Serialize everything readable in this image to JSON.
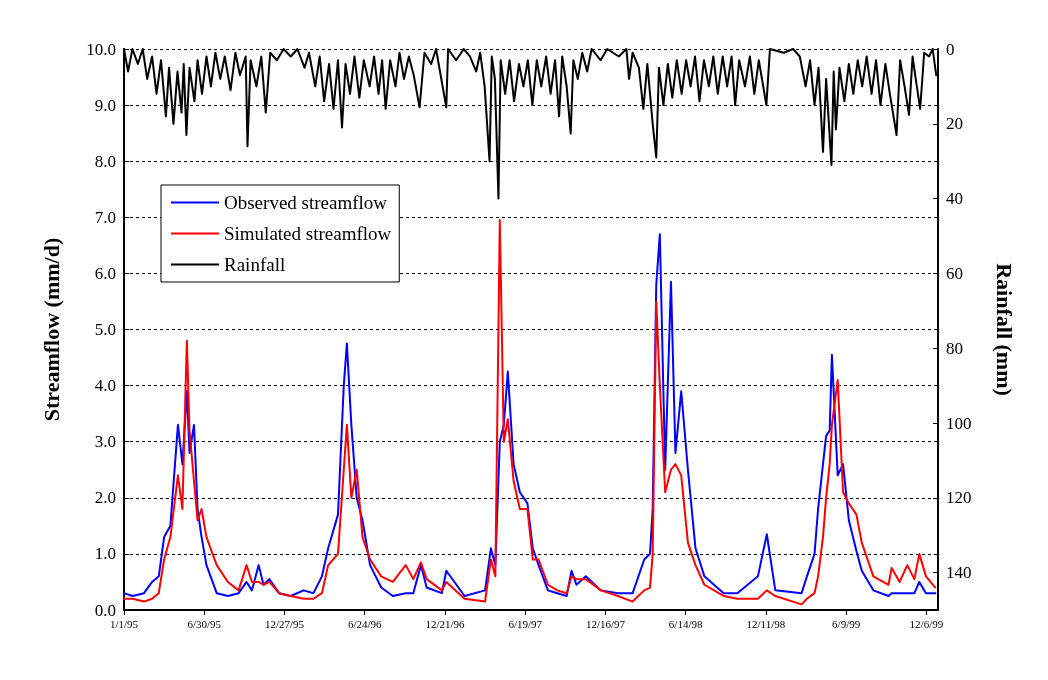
{
  "chart_data": {
    "type": "line",
    "ylabel": "Streamflow (mm/d)",
    "y2label": "Rainfall (mm)",
    "ylim": [
      0,
      10
    ],
    "yticks": [
      {
        "value": 0,
        "label": "0.0"
      },
      {
        "value": 1,
        "label": "1.0"
      },
      {
        "value": 2,
        "label": "2.0"
      },
      {
        "value": 3,
        "label": "3.0"
      },
      {
        "value": 4,
        "label": "4.0"
      },
      {
        "value": 5,
        "label": "5.0"
      },
      {
        "value": 6,
        "label": "6.0"
      },
      {
        "value": 7,
        "label": "7.0"
      },
      {
        "value": 8,
        "label": "8.0"
      },
      {
        "value": 9,
        "label": "9.0"
      },
      {
        "value": 10,
        "label": "10.0"
      }
    ],
    "y2lim": [
      150,
      0
    ],
    "y2ticks": [
      0,
      20,
      40,
      60,
      80,
      100,
      120,
      140
    ],
    "xlim": [
      "1995-01-01",
      "2000-01-01"
    ],
    "xticks": [
      {
        "value": "1995-01-01",
        "label": "1/1/95"
      },
      {
        "value": "1995-06-30",
        "label": "6/30/95"
      },
      {
        "value": "1995-12-27",
        "label": "12/27/95"
      },
      {
        "value": "1996-06-24",
        "label": "6/24/96"
      },
      {
        "value": "1996-12-21",
        "label": "12/21/96"
      },
      {
        "value": "1997-06-19",
        "label": "6/19/97"
      },
      {
        "value": "1997-12-16",
        "label": "12/16/97"
      },
      {
        "value": "1998-06-14",
        "label": "6/14/98"
      },
      {
        "value": "1998-12-11",
        "label": "12/11/98"
      },
      {
        "value": "1999-06-09",
        "label": "6/9/99"
      },
      {
        "value": "1999-12-06",
        "label": "12/6/99"
      }
    ],
    "grid": "y",
    "legend": "top left",
    "marker": "none",
    "line_style": "solid",
    "x": [
      "1995-01-01",
      "1995-01-20",
      "1995-02-15",
      "1995-03-05",
      "1995-03-20",
      "1995-04-01",
      "1995-04-15",
      "1995-05-02",
      "1995-05-12",
      "1995-05-22",
      "1995-05-28",
      "1995-06-07",
      "1995-06-15",
      "1995-06-24",
      "1995-07-05",
      "1995-07-28",
      "1995-08-22",
      "1995-09-15",
      "1995-10-03",
      "1995-10-15",
      "1995-10-30",
      "1995-11-10",
      "1995-11-23",
      "1995-12-15",
      "1996-01-10",
      "1996-02-08",
      "1996-03-01",
      "1996-03-20",
      "1996-04-03",
      "1996-04-25",
      "1996-05-08",
      "1996-05-15",
      "1996-05-25",
      "1996-06-06",
      "1996-06-19",
      "1996-07-06",
      "1996-07-31",
      "1996-08-26",
      "1996-09-24",
      "1996-10-11",
      "1996-10-28",
      "1996-11-10",
      "1996-12-14",
      "1996-12-24",
      "1997-02-03",
      "1997-03-21",
      "1997-04-03",
      "1997-04-13",
      "1997-04-23",
      "1997-05-02",
      "1997-05-11",
      "1997-05-24",
      "1997-06-07",
      "1997-06-24",
      "1997-07-06",
      "1997-07-19",
      "1997-08-09",
      "1997-08-30",
      "1997-09-20",
      "1997-10-01",
      "1997-10-12",
      "1997-11-02",
      "1997-12-06",
      "1998-01-13",
      "1998-02-15",
      "1998-03-13",
      "1998-03-26",
      "1998-04-01",
      "1998-04-09",
      "1998-04-17",
      "1998-04-29",
      "1998-05-12",
      "1998-05-22",
      "1998-06-04",
      "1998-06-19",
      "1998-07-06",
      "1998-07-26",
      "1998-09-07",
      "1998-10-08",
      "1998-11-23",
      "1998-12-13",
      "1999-01-01",
      "1999-03-01",
      "1999-03-13",
      "1999-03-30",
      "1999-04-07",
      "1999-04-18",
      "1999-04-25",
      "1999-05-03",
      "1999-05-08",
      "1999-05-21",
      "1999-06-02",
      "1999-06-15",
      "1999-07-02",
      "1999-07-14",
      "1999-08-09",
      "1999-09-12",
      "1999-09-19",
      "1999-10-07",
      "1999-10-24",
      "1999-11-09",
      "1999-11-20",
      "1999-12-05",
      "1999-12-26"
    ],
    "series": [
      {
        "name": "Observed streamflow",
        "type": "line",
        "color": "#0000ff",
        "values": [
          0.3,
          0.25,
          0.3,
          0.5,
          0.6,
          1.3,
          1.5,
          3.3,
          2.6,
          3.9,
          2.8,
          3.3,
          1.8,
          1.3,
          0.8,
          0.3,
          0.25,
          0.3,
          0.5,
          0.35,
          0.8,
          0.45,
          0.55,
          0.3,
          0.25,
          0.35,
          0.3,
          0.6,
          1.1,
          1.7,
          4.0,
          4.75,
          3.3,
          2.0,
          1.6,
          0.8,
          0.4,
          0.25,
          0.3,
          0.3,
          0.8,
          0.4,
          0.3,
          0.7,
          0.25,
          0.35,
          1.1,
          0.8,
          3.0,
          3.3,
          4.25,
          2.6,
          2.1,
          1.9,
          1.1,
          0.8,
          0.35,
          0.3,
          0.25,
          0.7,
          0.45,
          0.6,
          0.35,
          0.3,
          0.3,
          0.9,
          1.0,
          1.8,
          5.8,
          6.7,
          2.5,
          5.85,
          2.8,
          3.9,
          2.5,
          1.1,
          0.6,
          0.3,
          0.3,
          0.6,
          1.35,
          0.35,
          0.3,
          0.6,
          1.0,
          1.8,
          2.6,
          3.1,
          3.2,
          4.55,
          2.4,
          2.6,
          1.6,
          1.05,
          0.7,
          0.35,
          0.25,
          0.3,
          0.3,
          0.3,
          0.3,
          0.5,
          0.3,
          0.3
        ]
      },
      {
        "name": "Simulated streamflow",
        "type": "line",
        "color": "#ff0000",
        "values": [
          0.2,
          0.2,
          0.15,
          0.2,
          0.3,
          0.9,
          1.3,
          2.4,
          1.8,
          4.8,
          3.2,
          2.3,
          1.6,
          1.8,
          1.3,
          0.8,
          0.5,
          0.35,
          0.8,
          0.5,
          0.5,
          0.45,
          0.5,
          0.3,
          0.25,
          0.2,
          0.2,
          0.3,
          0.8,
          1.0,
          2.5,
          3.3,
          2.0,
          2.5,
          1.3,
          0.9,
          0.6,
          0.5,
          0.8,
          0.55,
          0.85,
          0.55,
          0.35,
          0.5,
          0.2,
          0.15,
          0.9,
          0.6,
          6.95,
          3.0,
          3.4,
          2.3,
          1.8,
          1.8,
          0.9,
          0.9,
          0.45,
          0.35,
          0.3,
          0.6,
          0.55,
          0.55,
          0.35,
          0.25,
          0.15,
          0.35,
          0.4,
          1.0,
          5.5,
          4.0,
          2.1,
          2.5,
          2.6,
          2.4,
          1.2,
          0.8,
          0.45,
          0.25,
          0.2,
          0.2,
          0.35,
          0.25,
          0.1,
          0.2,
          0.3,
          0.6,
          1.3,
          2.0,
          2.6,
          3.3,
          4.1,
          2.1,
          1.9,
          1.7,
          1.2,
          0.6,
          0.45,
          0.75,
          0.5,
          0.8,
          0.55,
          1.0,
          0.6,
          0.4
        ]
      },
      {
        "name": "Rainfall",
        "type": "line",
        "axis": "y2",
        "color": "#000000",
        "x": [
          "1995-01-01",
          "1995-01-10",
          "1995-01-20",
          "1995-02-01",
          "1995-02-12",
          "1995-02-22",
          "1995-03-05",
          "1995-03-15",
          "1995-03-25",
          "1995-04-05",
          "1995-04-12",
          "1995-04-22",
          "1995-05-01",
          "1995-05-10",
          "1995-05-15",
          "1995-05-21",
          "1995-05-28",
          "1995-06-08",
          "1995-06-15",
          "1995-06-25",
          "1995-07-05",
          "1995-07-15",
          "1995-07-25",
          "1995-08-05",
          "1995-08-15",
          "1995-08-28",
          "1995-09-08",
          "1995-09-18",
          "1995-10-01",
          "1995-10-05",
          "1995-10-12",
          "1995-10-25",
          "1995-11-05",
          "1995-11-15",
          "1995-11-25",
          "1995-12-10",
          "1995-12-25",
          "1996-01-10",
          "1996-01-25",
          "1996-02-10",
          "1996-02-20",
          "1996-03-05",
          "1996-03-15",
          "1996-03-25",
          "1996-04-05",
          "1996-04-15",
          "1996-04-25",
          "1996-05-04",
          "1996-05-12",
          "1996-05-22",
          "1996-06-01",
          "1996-06-12",
          "1996-06-22",
          "1996-07-05",
          "1996-07-15",
          "1996-07-25",
          "1996-08-02",
          "1996-08-10",
          "1996-08-20",
          "1996-09-01",
          "1996-09-10",
          "1996-09-20",
          "1996-10-01",
          "1996-10-12",
          "1996-10-25",
          "1996-11-05",
          "1996-11-20",
          "1996-12-01",
          "1996-12-24",
          "1996-12-28",
          "1997-01-15",
          "1997-02-01",
          "1997-02-15",
          "1997-03-01",
          "1997-03-10",
          "1997-03-20",
          "1997-03-31",
          "1997-04-05",
          "1997-04-12",
          "1997-04-20",
          "1997-04-25",
          "1997-05-05",
          "1997-05-15",
          "1997-05-25",
          "1997-06-05",
          "1997-06-15",
          "1997-06-25",
          "1997-07-05",
          "1997-07-15",
          "1997-07-25",
          "1997-08-05",
          "1997-08-15",
          "1997-08-25",
          "1997-09-03",
          "1997-09-10",
          "1997-09-20",
          "1997-09-29",
          "1997-10-05",
          "1997-10-15",
          "1997-10-25",
          "1997-11-05",
          "1997-11-15",
          "1997-12-05",
          "1997-12-20",
          "1998-01-15",
          "1998-02-01",
          "1998-02-07",
          "1998-02-15",
          "1998-03-01",
          "1998-03-11",
          "1998-03-20",
          "1998-04-01",
          "1998-04-09",
          "1998-04-15",
          "1998-04-25",
          "1998-05-05",
          "1998-05-15",
          "1998-05-25",
          "1998-06-05",
          "1998-06-15",
          "1998-06-25",
          "1998-07-05",
          "1998-07-15",
          "1998-07-25",
          "1998-08-05",
          "1998-08-15",
          "1998-08-25",
          "1998-09-05",
          "1998-09-15",
          "1998-09-25",
          "1998-10-03",
          "1998-10-12",
          "1998-10-25",
          "1998-11-05",
          "1998-11-15",
          "1998-11-25",
          "1998-12-12",
          "1998-12-20",
          "1999-01-20",
          "1999-02-10",
          "1999-02-25",
          "1999-03-10",
          "1999-03-20",
          "1999-03-30",
          "1999-04-08",
          "1999-04-18",
          "1999-04-25",
          "1999-05-07",
          "1999-05-12",
          "1999-05-17",
          "1999-05-25",
          "1999-06-05",
          "1999-06-15",
          "1999-06-25",
          "1999-07-05",
          "1999-07-15",
          "1999-07-25",
          "1999-08-05",
          "1999-08-15",
          "1999-08-25",
          "1999-09-05",
          "1999-09-15",
          "1999-09-30",
          "1999-10-08",
          "1999-10-18",
          "1999-10-28",
          "1999-11-05",
          "1999-11-12",
          "1999-11-22",
          "1999-12-01",
          "1999-12-12",
          "1999-12-20",
          "1999-12-28"
        ],
        "values": [
          0,
          6,
          0,
          4,
          0,
          8,
          2,
          12,
          3,
          18,
          5,
          20,
          6,
          17,
          4,
          23,
          5,
          14,
          3,
          12,
          2,
          10,
          1,
          8,
          2,
          11,
          1,
          7,
          2,
          26,
          3,
          10,
          2,
          17,
          1,
          3,
          0,
          2,
          0,
          5,
          1,
          10,
          2,
          14,
          4,
          16,
          3,
          21,
          4,
          12,
          2,
          13,
          3,
          10,
          2,
          12,
          3,
          16,
          3,
          10,
          1,
          8,
          2,
          7,
          15.6,
          1,
          4,
          0,
          15.6,
          0,
          3,
          0,
          2,
          6,
          1,
          10,
          30,
          2,
          8,
          40,
          3,
          12,
          3,
          14,
          4,
          10,
          3,
          15,
          3,
          10,
          2,
          12,
          3,
          18,
          2,
          10,
          22.6,
          3,
          8,
          1,
          6,
          0,
          3,
          0,
          2,
          0,
          8,
          1,
          5,
          16,
          4,
          20,
          29,
          5,
          15,
          4,
          13,
          3,
          12,
          3,
          10,
          2,
          14,
          3,
          10,
          2,
          12,
          2,
          10,
          2,
          15,
          3,
          10,
          2,
          12,
          3,
          15,
          0,
          1,
          0,
          2,
          10,
          3,
          15,
          5,
          27.5,
          8,
          31,
          6,
          21.5,
          5,
          14,
          4,
          12,
          3,
          10,
          2,
          12,
          3,
          15,
          4,
          12,
          23,
          3,
          10,
          17.6,
          2,
          8,
          16,
          1,
          2,
          0,
          7
        ]
      }
    ]
  }
}
